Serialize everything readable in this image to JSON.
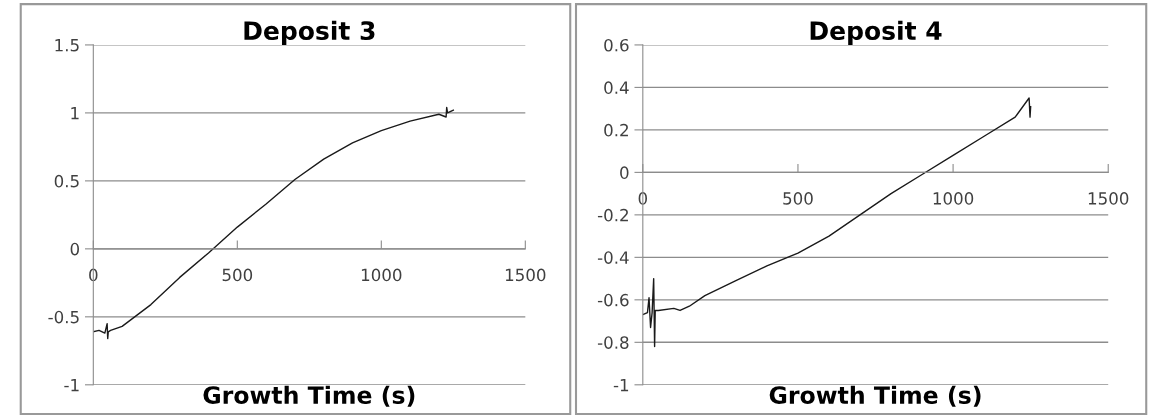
{
  "chart_data": [
    {
      "type": "line",
      "title": "Deposit 3",
      "xlabel": "Growth Time (s)",
      "color": "#1a1a1a",
      "grid": "y",
      "x": [
        0,
        20,
        40,
        48,
        50,
        52,
        60,
        100,
        200,
        300,
        400,
        500,
        600,
        700,
        800,
        900,
        1000,
        1100,
        1200,
        1225,
        1227,
        1230,
        1250
      ],
      "values": [
        -0.61,
        -0.6,
        -0.62,
        -0.55,
        -0.66,
        -0.61,
        -0.6,
        -0.57,
        -0.41,
        -0.21,
        -0.03,
        0.16,
        0.33,
        0.51,
        0.66,
        0.78,
        0.87,
        0.94,
        0.99,
        0.97,
        1.04,
        1.0,
        1.02
      ],
      "xlim": [
        0,
        1500
      ],
      "xticks": [
        0,
        500,
        1000,
        1500
      ],
      "ylim": [
        -1,
        1.5
      ],
      "yticks": [
        -1,
        -0.5,
        0,
        0.5,
        1,
        1.5
      ]
    },
    {
      "type": "line",
      "title": "Deposit 4",
      "xlabel": "Growth Time (s)",
      "color": "#1a1a1a",
      "grid": "y",
      "x": [
        0,
        15,
        20,
        25,
        30,
        35,
        38,
        40,
        50,
        100,
        120,
        150,
        200,
        300,
        400,
        500,
        600,
        700,
        800,
        900,
        1000,
        1100,
        1200,
        1245,
        1248,
        1250
      ],
      "values": [
        -0.67,
        -0.66,
        -0.59,
        -0.73,
        -0.66,
        -0.5,
        -0.82,
        -0.65,
        -0.65,
        -0.64,
        -0.65,
        -0.63,
        -0.58,
        -0.51,
        -0.44,
        -0.38,
        -0.3,
        -0.2,
        -0.1,
        -0.01,
        0.08,
        0.17,
        0.26,
        0.35,
        0.26,
        0.31
      ],
      "xlim": [
        0,
        1500
      ],
      "xticks": [
        0,
        500,
        1000,
        1500
      ],
      "ylim": [
        -1,
        0.6
      ],
      "yticks": [
        -1,
        -0.8,
        -0.6,
        -0.4,
        -0.2,
        0,
        0.2,
        0.4,
        0.6
      ]
    }
  ]
}
